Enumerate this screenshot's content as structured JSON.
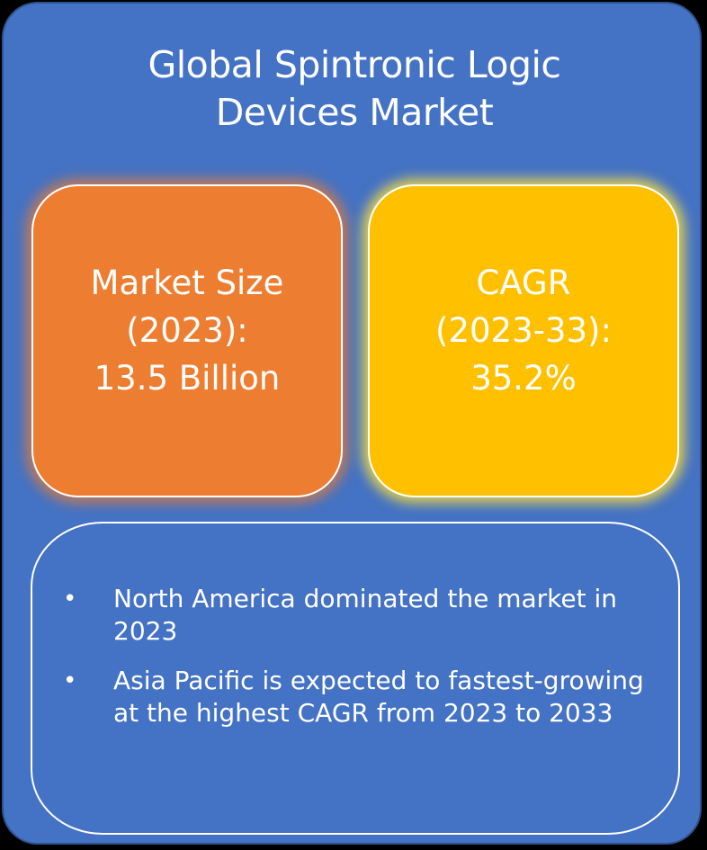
{
  "title_lines": [
    "Global Spintronic Logic",
    "Devices Market"
  ],
  "cards": {
    "market_size": {
      "lines": [
        "Market Size",
        "(2023):",
        "13.5 Billion"
      ],
      "color": "#ED7D31"
    },
    "cagr": {
      "lines": [
        "CAGR",
        "(2023-33):",
        "35.2%"
      ],
      "color": "#FFC000"
    }
  },
  "notes": {
    "bullet_glyph": "•",
    "items": [
      "North America dominated the market in 2023",
      "Asia Pacific is expected to fastest-growing at the highest CAGR from 2023 to 2033"
    ]
  },
  "colors": {
    "panel": "#4472C4",
    "text": "#FFFFFF"
  }
}
